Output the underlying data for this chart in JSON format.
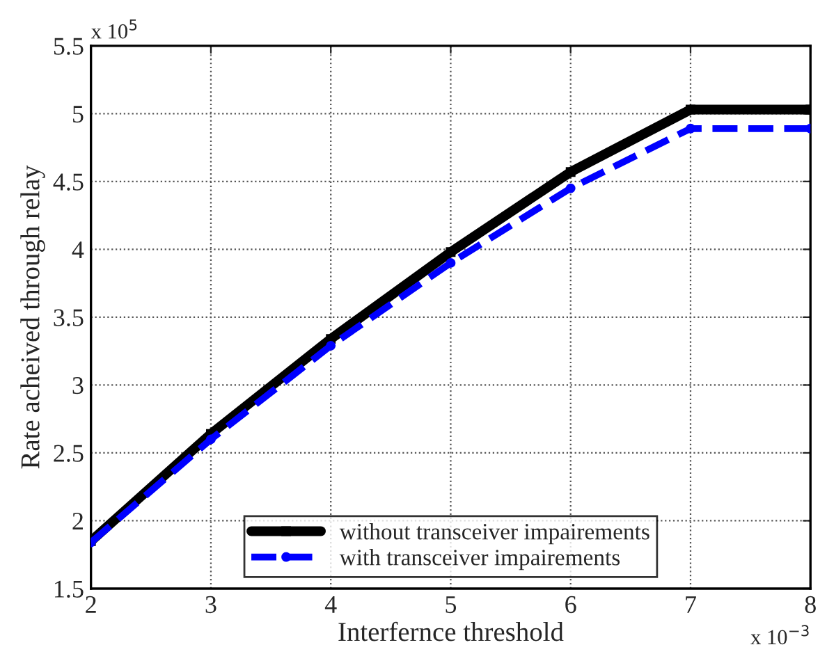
{
  "chart_data": {
    "type": "line",
    "xlabel": "Interfernce threshold",
    "ylabel": "Rate acheived through relay",
    "x": [
      2,
      3,
      4,
      5,
      6,
      7,
      8
    ],
    "series": [
      {
        "name": "without transceiver impairements",
        "color": "#000000",
        "values": [
          1.85,
          2.64,
          3.34,
          3.98,
          4.57,
          5.03,
          5.03
        ],
        "marker": "square",
        "line_style": "solid"
      },
      {
        "name": "with transceiver impairements",
        "color": "#0000ff",
        "values": [
          1.84,
          2.6,
          3.29,
          3.9,
          4.45,
          4.89,
          4.89
        ],
        "marker": "circle",
        "line_style": "dashed"
      }
    ],
    "xlim": [
      2,
      8
    ],
    "xticks": [
      2,
      3,
      4,
      5,
      6,
      7,
      8
    ],
    "ylim": [
      1.5,
      5.5
    ],
    "yticks": [
      1.5,
      2,
      2.5,
      3,
      3.5,
      4,
      4.5,
      5,
      5.5
    ],
    "grid": true,
    "legend": "bottom",
    "annotations": [
      "x 10$^{5}$",
      "x 10$^{−3}$"
    ]
  }
}
